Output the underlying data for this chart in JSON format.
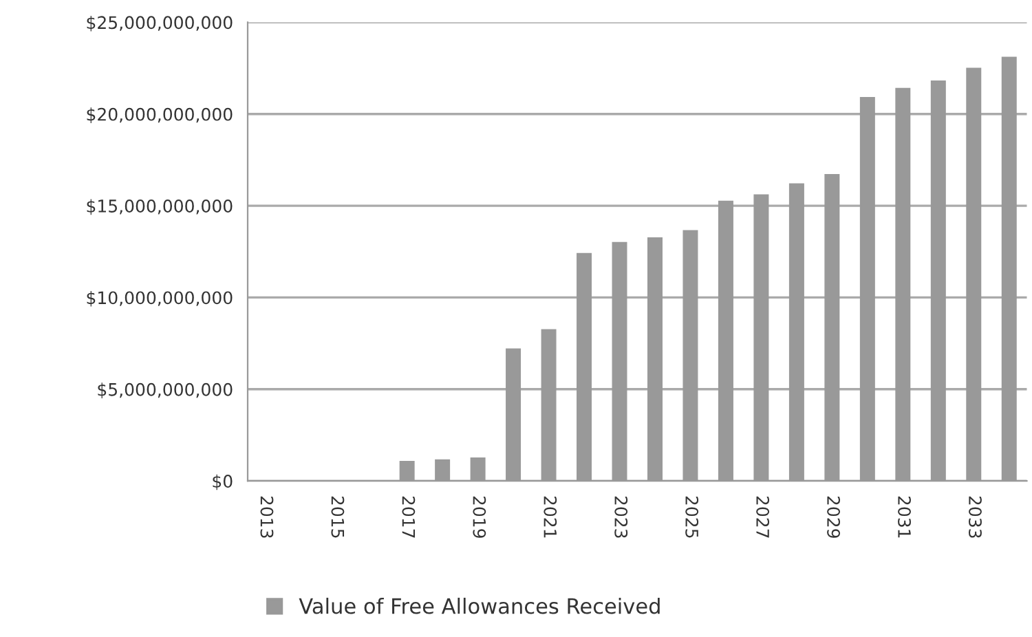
{
  "chart_data": {
    "type": "bar",
    "categories": [
      "2013",
      null,
      "2015",
      null,
      "2017",
      null,
      "2019",
      null,
      "2021",
      null,
      "2023",
      null,
      "2025",
      null,
      "2027",
      null,
      "2029",
      null,
      "2031",
      null,
      "2033",
      null
    ],
    "series": [
      {
        "name": "Value of Free Allowances Received",
        "color": "#999999",
        "values": [
          0,
          0,
          0,
          0,
          1070000000,
          1150000000,
          1250000000,
          7200000000,
          8250000000,
          12400000000,
          13000000000,
          13250000000,
          13650000000,
          15250000000,
          15600000000,
          16200000000,
          16700000000,
          20900000000,
          21400000000,
          21800000000,
          22500000000,
          23100000000
        ]
      }
    ],
    "ylim": [
      0,
      25000000000
    ],
    "yticks": [
      {
        "value": 0,
        "label": "$0"
      },
      {
        "value": 5000000000,
        "label": "$5,000,000,000"
      },
      {
        "value": 10000000000,
        "label": "$10,000,000,000"
      },
      {
        "value": 15000000000,
        "label": "$15,000,000,000"
      },
      {
        "value": 20000000000,
        "label": "$20,000,000,000"
      },
      {
        "value": 25000000000,
        "label": "$25,000,000,000"
      }
    ],
    "grid": "y",
    "legend": "bottom"
  }
}
